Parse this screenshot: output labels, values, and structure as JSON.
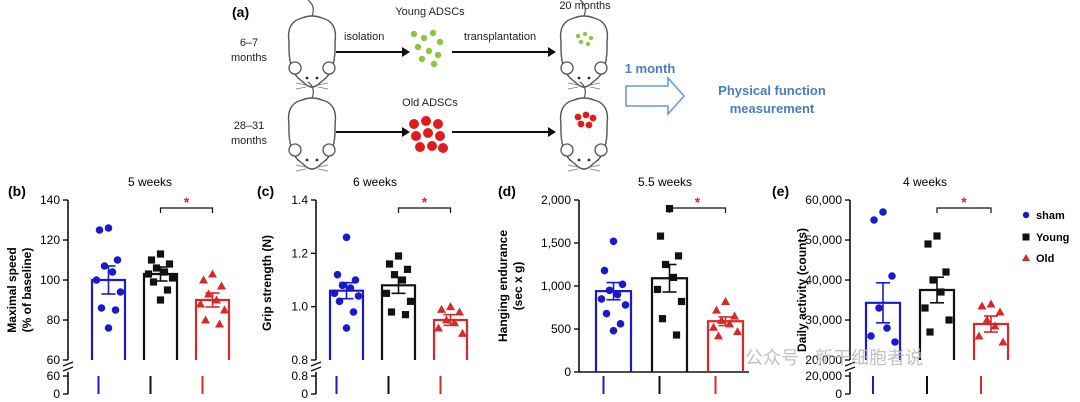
{
  "panel_a": {
    "letter": "(a)",
    "young_age": [
      "6–7",
      "months"
    ],
    "old_age": [
      "28–31",
      "months"
    ],
    "isolation": "isolation",
    "young_label": "Young ADSCs",
    "old_label": "Old ADSCs",
    "transplantation": "transplantation",
    "recipient_age": "20 months",
    "interval": "1 month",
    "outcome": [
      "Physical function",
      "measurement"
    ]
  },
  "legend": {
    "items": [
      {
        "label": "sham",
        "symbol": "circle",
        "color": "#1a1acc"
      },
      {
        "label": "Young",
        "symbol": "square",
        "color": "#111111"
      },
      {
        "label": "Old",
        "symbol": "triangle",
        "color": "#d42a2a"
      }
    ]
  },
  "watermark": "公众号 · 新干细胞者说",
  "colors": {
    "sham": "#1a1acc",
    "young": "#111111",
    "old": "#d42a2a",
    "arrow": "#6a9bd1",
    "text_blue": "#4a7cc0"
  },
  "chart_data": [
    {
      "type": "bar",
      "panel": "(b)",
      "title": "5 weeks",
      "ylabel": "Maximal speed (% of baseline)",
      "ylim": [
        60,
        140
      ],
      "yticks": [
        "140",
        "120",
        "100",
        "80",
        "60"
      ],
      "lower_ticks": [
        "60",
        "0"
      ],
      "significance": "*",
      "series": [
        {
          "name": "sham",
          "mean": 100,
          "sem": 7,
          "points": [
            126,
            125,
            110,
            107,
            104,
            100,
            94,
            86,
            85,
            76
          ]
        },
        {
          "name": "Young",
          "mean": 103,
          "sem": 3.5,
          "points": [
            113,
            110,
            108,
            106,
            104,
            103,
            101,
            99,
            95,
            90
          ]
        },
        {
          "name": "Old",
          "mean": 90,
          "sem": 3.5,
          "points": [
            103,
            100,
            97,
            93,
            90,
            88,
            85,
            80,
            78
          ]
        }
      ]
    },
    {
      "type": "bar",
      "panel": "(c)",
      "title": "6 weeks",
      "ylabel": "Grip strength (N)",
      "ylim": [
        0.8,
        1.4
      ],
      "yticks": [
        "1.4",
        "1.2",
        "1.0",
        "0.8"
      ],
      "lower_ticks": [
        "0.8",
        "0"
      ],
      "significance": "*",
      "series": [
        {
          "name": "sham",
          "mean": 1.06,
          "sem": 0.03,
          "points": [
            1.26,
            1.12,
            1.1,
            1.08,
            1.07,
            1.05,
            1.04,
            1.02,
            0.98,
            0.92
          ]
        },
        {
          "name": "Young",
          "mean": 1.08,
          "sem": 0.03,
          "points": [
            1.19,
            1.16,
            1.14,
            1.12,
            1.1,
            1.05,
            1.02,
            0.98,
            0.97
          ]
        },
        {
          "name": "Old",
          "mean": 0.95,
          "sem": 0.02,
          "points": [
            1.0,
            0.99,
            0.98,
            0.95,
            0.94,
            0.92,
            0.9
          ]
        }
      ]
    },
    {
      "type": "bar",
      "panel": "(d)",
      "title": "5.5 weeks",
      "ylabel": "Hanging endurance (sec x g)",
      "ylim": [
        0,
        2000
      ],
      "yticks": [
        "2,000",
        "1,500",
        "1,000",
        "500",
        "0"
      ],
      "significance": "*",
      "series": [
        {
          "name": "sham",
          "mean": 940,
          "sem": 100,
          "points": [
            1520,
            1180,
            1020,
            950,
            900,
            850,
            780,
            680,
            560,
            480
          ]
        },
        {
          "name": "Young",
          "mean": 1090,
          "sem": 160,
          "points": [
            1900,
            1580,
            1350,
            1250,
            1100,
            960,
            820,
            620,
            430
          ]
        },
        {
          "name": "Old",
          "mean": 590,
          "sem": 50,
          "points": [
            820,
            720,
            650,
            600,
            560,
            520,
            470,
            420
          ]
        }
      ]
    },
    {
      "type": "bar",
      "panel": "(e)",
      "title": "4 weeks",
      "ylabel": "Daily activity (counts)",
      "ylim": [
        20000,
        60000
      ],
      "yticks": [
        "60,000",
        "50,000",
        "40,000",
        "30,000",
        "20,000"
      ],
      "lower_ticks": [
        "20,000",
        "0"
      ],
      "significance": "*",
      "series": [
        {
          "name": "sham",
          "mean": 34300,
          "sem": 5000,
          "points": [
            57000,
            55000,
            41000,
            33000,
            28000,
            26000,
            24500
          ]
        },
        {
          "name": "Young",
          "mean": 37500,
          "sem": 3200,
          "points": [
            51000,
            49000,
            42000,
            40000,
            37000,
            33000,
            30000,
            27000
          ]
        },
        {
          "name": "Old",
          "mean": 29000,
          "sem": 2000,
          "points": [
            34000,
            33500,
            32000,
            30000,
            28500,
            26000,
            24500
          ]
        }
      ]
    }
  ]
}
